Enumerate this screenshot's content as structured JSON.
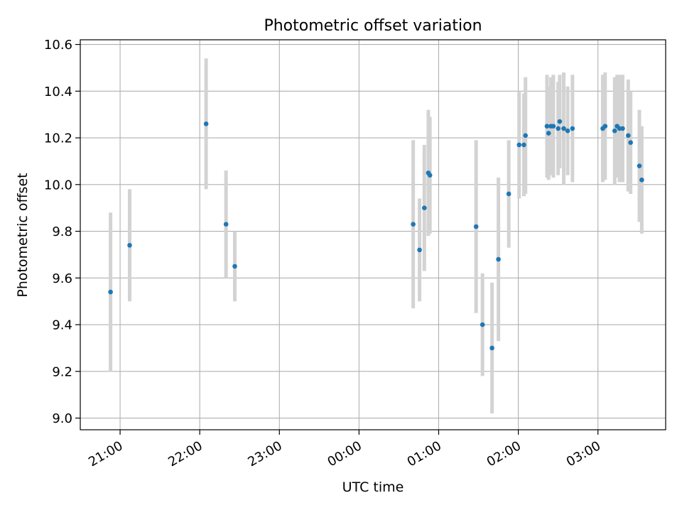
{
  "chart_data": {
    "type": "scatter",
    "title": "Photometric offset variation",
    "xlabel": "UTC time",
    "ylabel": "Photometric offset",
    "xlim": [
      20.5,
      27.85
    ],
    "ylim": [
      8.95,
      10.62
    ],
    "grid": true,
    "x_unit": "hours since 00:00 of first night (values above 24 are after midnight)",
    "x_ticks": [
      {
        "value": 21,
        "label": "21:00"
      },
      {
        "value": 22,
        "label": "22:00"
      },
      {
        "value": 23,
        "label": "23:00"
      },
      {
        "value": 24,
        "label": "00:00"
      },
      {
        "value": 25,
        "label": "01:00"
      },
      {
        "value": 26,
        "label": "02:00"
      },
      {
        "value": 27,
        "label": "03:00"
      }
    ],
    "y_ticks": [
      {
        "value": 9.0,
        "label": "9.0"
      },
      {
        "value": 9.2,
        "label": "9.2"
      },
      {
        "value": 9.4,
        "label": "9.4"
      },
      {
        "value": 9.6,
        "label": "9.6"
      },
      {
        "value": 9.8,
        "label": "9.8"
      },
      {
        "value": 10.0,
        "label": "10.0"
      },
      {
        "value": 10.2,
        "label": "10.2"
      },
      {
        "value": 10.4,
        "label": "10.4"
      },
      {
        "value": 10.6,
        "label": "10.6"
      }
    ],
    "series": [
      {
        "name": "offset",
        "marker_color": "#1f77b4",
        "errorbar_color": "#d3d3d3",
        "points": [
          {
            "x": 20.88,
            "y": 9.54,
            "err": 0.34
          },
          {
            "x": 21.12,
            "y": 9.74,
            "err": 0.24
          },
          {
            "x": 22.08,
            "y": 10.26,
            "err": 0.28
          },
          {
            "x": 22.33,
            "y": 9.83,
            "err": 0.23
          },
          {
            "x": 22.44,
            "y": 9.65,
            "err": 0.15
          },
          {
            "x": 24.68,
            "y": 9.83,
            "err": 0.36
          },
          {
            "x": 24.76,
            "y": 9.72,
            "err": 0.22
          },
          {
            "x": 24.82,
            "y": 9.9,
            "err": 0.27
          },
          {
            "x": 24.87,
            "y": 10.05,
            "err": 0.27
          },
          {
            "x": 24.89,
            "y": 10.04,
            "err": 0.25
          },
          {
            "x": 25.47,
            "y": 9.82,
            "err": 0.37
          },
          {
            "x": 25.55,
            "y": 9.4,
            "err": 0.22
          },
          {
            "x": 25.67,
            "y": 9.3,
            "err": 0.28
          },
          {
            "x": 25.75,
            "y": 9.68,
            "err": 0.35
          },
          {
            "x": 25.88,
            "y": 9.96,
            "err": 0.23
          },
          {
            "x": 26.01,
            "y": 10.17,
            "err": 0.23
          },
          {
            "x": 26.07,
            "y": 10.17,
            "err": 0.22
          },
          {
            "x": 26.09,
            "y": 10.21,
            "err": 0.25
          },
          {
            "x": 26.36,
            "y": 10.25,
            "err": 0.22
          },
          {
            "x": 26.38,
            "y": 10.22,
            "err": 0.2
          },
          {
            "x": 26.41,
            "y": 10.25,
            "err": 0.21
          },
          {
            "x": 26.44,
            "y": 10.25,
            "err": 0.22
          },
          {
            "x": 26.5,
            "y": 10.24,
            "err": 0.2
          },
          {
            "x": 26.52,
            "y": 10.27,
            "err": 0.2
          },
          {
            "x": 26.57,
            "y": 10.24,
            "err": 0.24
          },
          {
            "x": 26.62,
            "y": 10.23,
            "err": 0.19
          },
          {
            "x": 26.68,
            "y": 10.24,
            "err": 0.23
          },
          {
            "x": 27.06,
            "y": 10.24,
            "err": 0.23
          },
          {
            "x": 27.09,
            "y": 10.25,
            "err": 0.23
          },
          {
            "x": 27.21,
            "y": 10.23,
            "err": 0.23
          },
          {
            "x": 27.24,
            "y": 10.25,
            "err": 0.22
          },
          {
            "x": 27.27,
            "y": 10.24,
            "err": 0.23
          },
          {
            "x": 27.31,
            "y": 10.24,
            "err": 0.23
          },
          {
            "x": 27.38,
            "y": 10.21,
            "err": 0.24
          },
          {
            "x": 27.41,
            "y": 10.18,
            "err": 0.22
          },
          {
            "x": 27.52,
            "y": 10.08,
            "err": 0.24
          },
          {
            "x": 27.55,
            "y": 10.02,
            "err": 0.23
          }
        ]
      }
    ]
  }
}
